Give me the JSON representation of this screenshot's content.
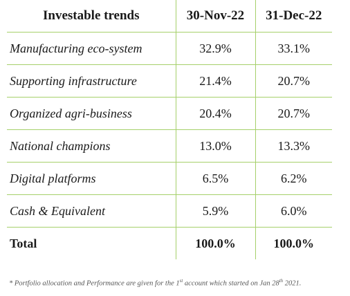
{
  "table": {
    "headers": [
      "Investable trends",
      "30-Nov-22",
      "31-Dec-22"
    ],
    "rows": [
      {
        "label": "Manufacturing eco-system",
        "nov": "32.9%",
        "dec": "33.1%"
      },
      {
        "label": "Supporting infrastructure",
        "nov": "21.4%",
        "dec": "20.7%"
      },
      {
        "label": "Organized agri-business",
        "nov": "20.4%",
        "dec": "20.7%"
      },
      {
        "label": "National champions",
        "nov": "13.0%",
        "dec": "13.3%"
      },
      {
        "label": "Digital platforms",
        "nov": "6.5%",
        "dec": "6.2%"
      },
      {
        "label": "Cash & Equivalent",
        "nov": "5.9%",
        "dec": "6.0%"
      }
    ],
    "total": {
      "label": "Total",
      "nov": "100.0%",
      "dec": "100.0%"
    }
  },
  "footnote": {
    "part1": "* Portfolio allocation and Performance are given for the 1",
    "sup1": "st",
    "part2": " account which started on Jan 28",
    "sup2": "th",
    "part3": " 2021."
  },
  "colors": {
    "rule": "#a5d06a"
  }
}
